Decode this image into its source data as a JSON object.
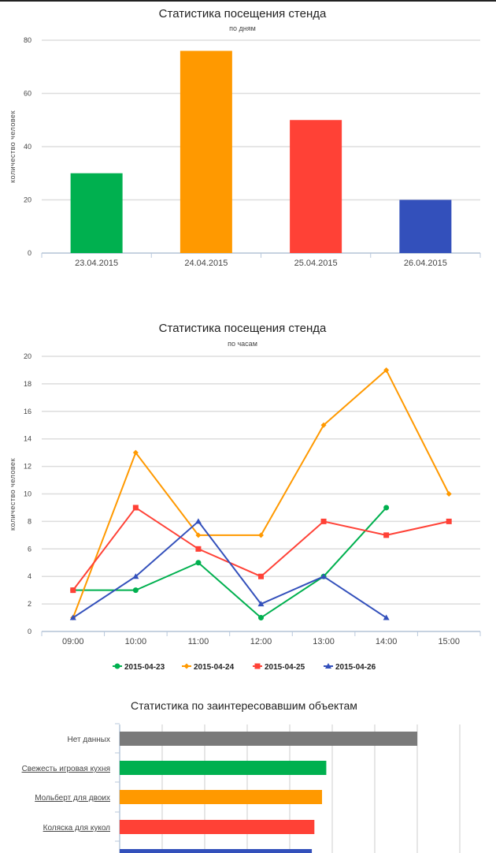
{
  "chart_data": [
    {
      "type": "bar",
      "title": "Статистика посещения стенда",
      "subtitle": "по дням",
      "ylabel": "количество человек",
      "xlabel": "",
      "categories": [
        "23.04.2015",
        "24.04.2015",
        "25.04.2015",
        "26.04.2015"
      ],
      "values": [
        30,
        76,
        50,
        20
      ],
      "colors": [
        "#00b04f",
        "#ff9900",
        "#ff4136",
        "#3350bb"
      ],
      "ylim": [
        0,
        80
      ],
      "yticks": [
        "0",
        "20",
        "40",
        "60",
        "80"
      ],
      "grid": true
    },
    {
      "type": "line",
      "title": "Статистика посещения стенда",
      "subtitle": "по часам",
      "ylabel": "количество человек",
      "xlabel": "",
      "categories": [
        "09:00",
        "10:00",
        "11:00",
        "12:00",
        "13:00",
        "14:00",
        "15:00"
      ],
      "ylim": [
        0,
        20
      ],
      "yticks": [
        "0",
        "2",
        "4",
        "6",
        "8",
        "10",
        "12",
        "14",
        "16",
        "18",
        "20"
      ],
      "grid": true,
      "legend": "bottom",
      "series": [
        {
          "name": "2015-04-23",
          "color": "#00b04f",
          "marker": "circle",
          "values": [
            3,
            3,
            5,
            1,
            4,
            9,
            null
          ]
        },
        {
          "name": "2015-04-24",
          "color": "#ff9900",
          "marker": "diamond",
          "values": [
            1,
            13,
            7,
            7,
            15,
            19,
            10
          ]
        },
        {
          "name": "2015-04-25",
          "color": "#ff4136",
          "marker": "square",
          "values": [
            3,
            9,
            6,
            4,
            8,
            7,
            8
          ]
        },
        {
          "name": "2015-04-26",
          "color": "#3350bb",
          "marker": "triangle",
          "values": [
            1,
            4,
            8,
            2,
            4,
            1,
            null
          ]
        }
      ]
    },
    {
      "type": "bar",
      "orientation": "horizontal",
      "title": "Статистика по заинтересовавшим объектам",
      "categories": [
        "Нет данных",
        "Свежесть игровая кухня",
        "Мольберт для двоих",
        "Коляска для кукол",
        ""
      ],
      "links": [
        false,
        true,
        true,
        true,
        true
      ],
      "values": [
        35,
        24.3,
        23.8,
        22.9,
        22.6
      ],
      "xlim": [
        0,
        40
      ],
      "colors": [
        "#7a7a7a",
        "#00b04f",
        "#ff9900",
        "#ff4136",
        "#3350bb"
      ],
      "grid": true
    }
  ]
}
